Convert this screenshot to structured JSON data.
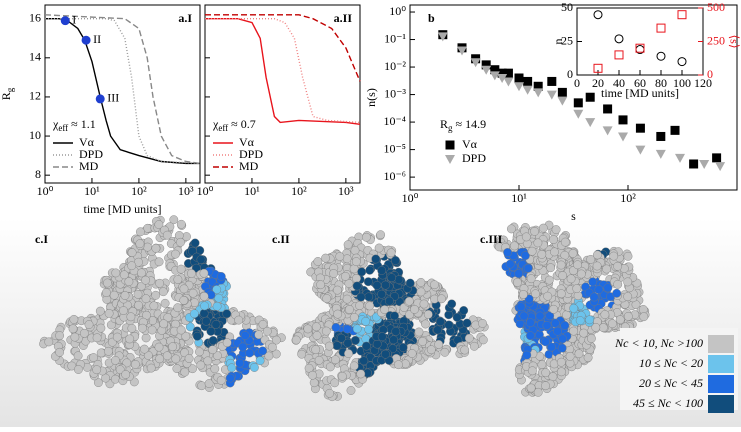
{
  "chart_data": [
    {
      "type": "line",
      "label": "a.I",
      "ylabel": [
        "R",
        "g"
      ],
      "xlabel": "time [MD units]",
      "log_x": true,
      "xlim": [
        1,
        2000
      ],
      "xticks": [
        {
          "value": 1,
          "label": "10⁰"
        },
        {
          "value": 10,
          "label": "10¹"
        },
        {
          "value": 100,
          "label": "10²"
        },
        {
          "value": 1000,
          "label": "10³"
        }
      ],
      "ylim": [
        7.6,
        16.7
      ],
      "yticks": [
        8,
        10,
        12,
        14,
        16
      ],
      "annotation": [
        "χ",
        "eff",
        " ≈ 1.1"
      ],
      "series": [
        {
          "name": "Vα",
          "color": "#000000",
          "dash": "none",
          "x": [
            1,
            2,
            3,
            5,
            7,
            10,
            15,
            20,
            25,
            40,
            100,
            300,
            1000,
            2000
          ],
          "values": [
            16,
            16,
            15.9,
            15.5,
            14.9,
            13.8,
            12,
            10.8,
            10,
            9.3,
            9,
            8.7,
            8.6,
            8.6
          ]
        },
        {
          "name": "DPD",
          "color": "#999999",
          "dash": "1 2",
          "x": [
            1,
            20,
            30,
            50,
            70,
            100,
            150,
            300,
            2000
          ],
          "values": [
            16,
            16,
            15.9,
            15,
            13,
            10,
            9,
            8.7,
            8.6
          ]
        },
        {
          "name": "MD",
          "color": "#888888",
          "dash": "6 3",
          "x": [
            1,
            50,
            100,
            150,
            200,
            300,
            500,
            1000,
            2000
          ],
          "values": [
            16.2,
            16,
            15.5,
            14,
            12,
            10,
            9,
            8.7,
            8.6
          ]
        }
      ],
      "points": {
        "color": "#1f3fd0",
        "labels": [
          "I",
          "II",
          "III"
        ],
        "x": [
          2.7,
          7.5,
          15
        ],
        "values": [
          15.9,
          14.9,
          11.9
        ]
      }
    },
    {
      "type": "line",
      "label": "a.II",
      "log_x": true,
      "shared_y": true,
      "xlim": [
        1,
        2000
      ],
      "xticks": [
        {
          "value": 1,
          "label": "10⁰"
        },
        {
          "value": 10,
          "label": "10¹"
        },
        {
          "value": 100,
          "label": "10²"
        },
        {
          "value": 1000,
          "label": "10³"
        }
      ],
      "ylim": [
        7.6,
        16.7
      ],
      "yticks": [
        8,
        10,
        12,
        14,
        16
      ],
      "annotation": [
        "χ",
        "eff",
        " ≈ 0.7"
      ],
      "series": [
        {
          "name": "Vα",
          "color": "#e8141c",
          "dash": "none",
          "x": [
            1,
            5,
            10,
            15,
            20,
            30,
            40,
            100,
            1000,
            2000
          ],
          "values": [
            16,
            16,
            15.8,
            15,
            13,
            11,
            10.7,
            10.8,
            10.7,
            10.6
          ]
        },
        {
          "name": "DPD",
          "color": "#f08080",
          "dash": "1 2",
          "x": [
            1,
            30,
            50,
            80,
            120,
            200,
            400,
            2000
          ],
          "values": [
            16,
            16,
            15.8,
            15,
            13,
            11,
            10.8,
            10.7
          ]
        },
        {
          "name": "MD",
          "color": "#c00000",
          "dash": "6 3",
          "x": [
            1,
            100,
            200,
            500,
            1000,
            2000
          ],
          "values": [
            16.2,
            16.2,
            16,
            15.5,
            14.5,
            12.8
          ]
        }
      ]
    },
    {
      "type": "scatter",
      "label": "b",
      "ylabel": "n(s)",
      "xlabel": "s",
      "log_x": true,
      "log_y": true,
      "xlim": [
        1,
        1000
      ],
      "xticks": [
        {
          "value": 1,
          "label": "10⁰"
        },
        {
          "value": 10,
          "label": "10¹"
        },
        {
          "value": 100,
          "label": "10²"
        }
      ],
      "ylim": [
        3.4e-07,
        1.8
      ],
      "yticks": [
        {
          "value": 1,
          "label": "10⁰"
        },
        {
          "value": 0.1,
          "label": "10⁻¹"
        },
        {
          "value": 0.01,
          "label": "10⁻²"
        },
        {
          "value": 0.001,
          "label": "10⁻³"
        },
        {
          "value": 0.0001,
          "label": "10⁻⁴"
        },
        {
          "value": 1e-05,
          "label": "10⁻⁵"
        },
        {
          "value": 1e-06,
          "label": "10⁻⁶"
        }
      ],
      "annotation": [
        "R",
        "g",
        " ≈ 14.9"
      ],
      "series": [
        {
          "name": "Vα",
          "color": "#000000",
          "marker": "square",
          "x": [
            2,
            3,
            4,
            5,
            6,
            7,
            8,
            10,
            12,
            15,
            20,
            25,
            35,
            45,
            65,
            90,
            130,
            200,
            270,
            400,
            650
          ],
          "values": [
            0.15,
            0.05,
            0.02,
            0.012,
            0.008,
            0.006,
            0.006,
            0.004,
            0.003,
            0.002,
            0.003,
            0.0012,
            0.0005,
            0.0008,
            0.0003,
            0.00012,
            6e-05,
            3e-05,
            5e-05,
            3e-06,
            5e-06
          ]
        },
        {
          "name": "DPD",
          "color": "#aaaaaa",
          "marker": "triangle",
          "x": [
            2,
            3,
            4,
            5,
            6,
            7,
            8,
            10,
            12,
            15,
            20,
            25,
            35,
            45,
            65,
            90,
            130,
            200,
            300,
            500,
            700
          ],
          "values": [
            0.13,
            0.04,
            0.015,
            0.008,
            0.005,
            0.004,
            0.003,
            0.002,
            0.0015,
            0.0012,
            0.001,
            0.0006,
            0.0002,
            0.0001,
            5e-05,
            3e-05,
            1e-05,
            7e-06,
            5e-06,
            3e-06,
            2.5e-06
          ]
        }
      ]
    },
    {
      "type": "scatter",
      "inset": true,
      "xlabel": "time [MD units]",
      "ylabel": "n",
      "y2label": "⟨s⟩",
      "xlim": [
        0,
        120
      ],
      "xticks": [
        0,
        20,
        40,
        60,
        80,
        100,
        120
      ],
      "ylim": [
        0,
        50
      ],
      "yticks": [
        0,
        25,
        50
      ],
      "y2lim": [
        0,
        500
      ],
      "y2ticks": [
        0,
        250,
        500
      ],
      "series": [
        {
          "color": "#000000",
          "marker": "circle",
          "x": [
            20,
            40,
            60,
            80,
            100
          ],
          "values": [
            45,
            27,
            19,
            14,
            10
          ]
        },
        {
          "color": "#e8141c",
          "marker": "square",
          "axis": "y2",
          "x": [
            20,
            40,
            60,
            80,
            100
          ],
          "values": [
            50,
            150,
            200,
            350,
            450
          ]
        }
      ]
    }
  ],
  "panels_c": {
    "labels": [
      "c.I",
      "c.II",
      "c.III"
    ],
    "legend": [
      {
        "text": "Nc < 10, Nc >100",
        "color": "#c4c4c4"
      },
      {
        "text": "10 ≤ Nc < 20",
        "color": "#6cc3ec"
      },
      {
        "text": "20 ≤ Nc < 45",
        "color": "#1f6be0"
      },
      {
        "text": "45 ≤ Nc < 100",
        "color": "#114d7c"
      }
    ]
  }
}
